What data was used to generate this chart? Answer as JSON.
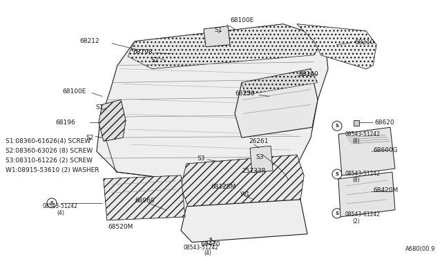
{
  "bg_color": "#ffffff",
  "lc": "#1a1a1a",
  "tc": "#1a1a1a",
  "fig_width": 6.4,
  "fig_height": 3.72,
  "dpi": 100,
  "legend_lines": [
    "S1:08360-61626(4) SCREW",
    "S2:08360-63026 (8) SCREW",
    "S3:08310-61226 (2) SCREW",
    "W1:08915-53610 (2) WASHER"
  ],
  "part_num": "A680(00.9"
}
